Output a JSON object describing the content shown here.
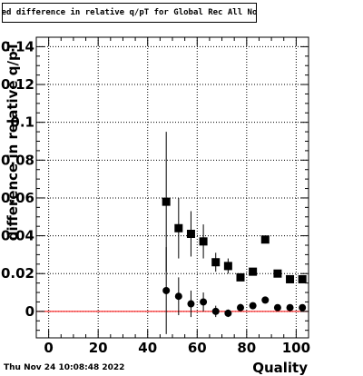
{
  "chart_data": {
    "type": "scatter",
    "title": "Fitted difference in relative q/pT for Global Rec All NoHits",
    "xlabel": "Quality",
    "ylabel": "difference in relative q/pT",
    "xlim": [
      -5,
      105
    ],
    "ylim": [
      -0.014,
      0.145
    ],
    "x_ticks": [
      0,
      20,
      40,
      60,
      80,
      100
    ],
    "y_ticks": [
      0,
      0.02,
      0.04,
      0.06,
      0.08,
      0.1,
      0.12,
      0.14
    ],
    "grid": true,
    "reference_line": {
      "y": 0,
      "color": "#ff0000"
    },
    "series": [
      {
        "marker": "square",
        "color": "#000000",
        "points": [
          {
            "x": 47.5,
            "y": 0.058,
            "err": 0.037
          },
          {
            "x": 52.5,
            "y": 0.044,
            "err": 0.016
          },
          {
            "x": 57.5,
            "y": 0.041,
            "err": 0.012
          },
          {
            "x": 62.5,
            "y": 0.037,
            "err": 0.009
          },
          {
            "x": 67.5,
            "y": 0.026,
            "err": 0.005
          },
          {
            "x": 72.5,
            "y": 0.024,
            "err": 0.004
          },
          {
            "x": 77.5,
            "y": 0.018,
            "err": 0.002
          },
          {
            "x": 82.5,
            "y": 0.021,
            "err": 0.002
          },
          {
            "x": 87.5,
            "y": 0.038,
            "err": 0.001
          },
          {
            "x": 92.5,
            "y": 0.02,
            "err": 0.001
          },
          {
            "x": 97.5,
            "y": 0.017,
            "err": 0.001
          },
          {
            "x": 102.5,
            "y": 0.017,
            "err": 0.001
          }
        ]
      },
      {
        "marker": "circle",
        "color": "#000000",
        "points": [
          {
            "x": 47.5,
            "y": 0.011,
            "err": 0.023
          },
          {
            "x": 52.5,
            "y": 0.008,
            "err": 0.01
          },
          {
            "x": 57.5,
            "y": 0.004,
            "err": 0.007
          },
          {
            "x": 62.5,
            "y": 0.005,
            "err": 0.005
          },
          {
            "x": 67.5,
            "y": 0.0,
            "err": 0.003
          },
          {
            "x": 72.5,
            "y": -0.001,
            "err": 0.002
          },
          {
            "x": 77.5,
            "y": 0.002,
            "err": 0.002
          },
          {
            "x": 82.5,
            "y": 0.003,
            "err": 0.001
          },
          {
            "x": 87.5,
            "y": 0.006,
            "err": 0.001
          },
          {
            "x": 92.5,
            "y": 0.002,
            "err": 0.001
          },
          {
            "x": 97.5,
            "y": 0.002,
            "err": 0.001
          },
          {
            "x": 102.5,
            "y": 0.002,
            "err": 0.001
          }
        ]
      }
    ]
  },
  "footer": {
    "date": "Thu Nov 24 10:08:48 2022"
  }
}
